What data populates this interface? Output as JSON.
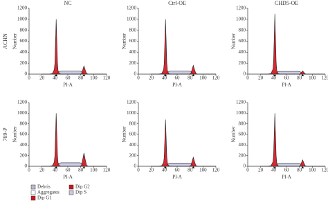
{
  "columns": [
    "NC",
    "Ctrl-OE",
    "CHD5-OE"
  ],
  "rows": [
    "ACHN",
    "769-P"
  ],
  "legend": [
    {
      "name": "Debris",
      "color": "#b9b9d6"
    },
    {
      "name": "Aggregates",
      "color": "#ffffff"
    },
    {
      "name": "Dip G1",
      "color": "#d0121b"
    },
    {
      "name": "Dip G2",
      "color": "#d0121b"
    },
    {
      "name": "Dip S",
      "color": "#c9c9e6"
    }
  ],
  "chart_data": [
    {
      "type": "area",
      "xlabel": "PI-A",
      "ylabel": "Number",
      "xlim": [
        0,
        120
      ],
      "ylim": [
        0,
        1200
      ],
      "xticks": [
        0,
        20,
        40,
        60,
        80,
        100,
        120
      ],
      "yticks": [
        0,
        200,
        400,
        600,
        800,
        1000,
        1200
      ],
      "markers": [
        42,
        85
      ],
      "x": [
        20,
        30,
        36,
        39,
        40,
        41,
        42,
        43,
        44,
        45,
        47,
        50,
        60,
        70,
        78,
        81,
        83,
        85,
        87,
        89,
        92,
        100,
        110,
        120
      ],
      "series": [
        {
          "name": "Dip S",
          "values": [
            0,
            0,
            0,
            0,
            0,
            0,
            0,
            0,
            20,
            40,
            50,
            55,
            55,
            55,
            55,
            50,
            30,
            10,
            0,
            0,
            0,
            0,
            0,
            0
          ]
        },
        {
          "name": "Dip G1",
          "values": [
            0,
            0,
            10,
            80,
            200,
            600,
            1000,
            600,
            200,
            60,
            10,
            0,
            0,
            0,
            0,
            0,
            0,
            0,
            0,
            0,
            0,
            0,
            0,
            0
          ]
        },
        {
          "name": "Dip G2",
          "values": [
            0,
            0,
            0,
            0,
            0,
            0,
            0,
            0,
            0,
            0,
            0,
            0,
            0,
            0,
            0,
            8,
            75,
            150,
            75,
            12,
            0,
            0,
            0,
            0
          ]
        }
      ]
    },
    {
      "type": "area",
      "xlabel": "PI-A",
      "ylabel": "Number",
      "xlim": [
        0,
        120
      ],
      "ylim": [
        0,
        1200
      ],
      "xticks": [
        0,
        20,
        40,
        60,
        80,
        100,
        120
      ],
      "yticks": [
        0,
        200,
        400,
        600,
        800,
        1000,
        1200
      ],
      "markers": [
        42,
        85
      ],
      "x": [
        20,
        30,
        36,
        39,
        40,
        41,
        42,
        43,
        44,
        45,
        47,
        50,
        60,
        70,
        78,
        81,
        83,
        85,
        87,
        89,
        92,
        100,
        110,
        120
      ],
      "series": [
        {
          "name": "Dip S",
          "values": [
            0,
            0,
            0,
            0,
            0,
            0,
            0,
            0,
            20,
            40,
            50,
            55,
            55,
            55,
            55,
            50,
            30,
            10,
            0,
            0,
            0,
            0,
            0,
            0
          ]
        },
        {
          "name": "Dip G1",
          "values": [
            0,
            0,
            10,
            80,
            200,
            600,
            1000,
            600,
            200,
            60,
            10,
            0,
            0,
            0,
            0,
            0,
            0,
            0,
            0,
            0,
            0,
            0,
            0,
            0
          ]
        },
        {
          "name": "Dip G2",
          "values": [
            0,
            0,
            0,
            0,
            0,
            0,
            0,
            0,
            0,
            0,
            0,
            0,
            0,
            0,
            0,
            9,
            80,
            160,
            80,
            13,
            0,
            0,
            0,
            0
          ]
        }
      ]
    },
    {
      "type": "area",
      "xlabel": "PI-A",
      "ylabel": "Number",
      "xlim": [
        0,
        120
      ],
      "ylim": [
        0,
        1200
      ],
      "xticks": [
        0,
        20,
        40,
        60,
        80,
        100,
        120
      ],
      "yticks": [
        0,
        200,
        400,
        600,
        800,
        1000,
        1200
      ],
      "markers": [
        42,
        85
      ],
      "x": [
        20,
        30,
        36,
        39,
        40,
        41,
        42,
        43,
        44,
        45,
        47,
        50,
        60,
        70,
        78,
        81,
        83,
        85,
        87,
        89,
        92,
        100,
        110,
        120
      ],
      "series": [
        {
          "name": "Dip S",
          "values": [
            0,
            0,
            0,
            0,
            0,
            0,
            0,
            0,
            18,
            36,
            45,
            50,
            50,
            50,
            50,
            45,
            27,
            9,
            0,
            0,
            0,
            0,
            0,
            0
          ]
        },
        {
          "name": "Dip G1",
          "values": [
            0,
            0,
            11,
            88,
            220,
            660,
            1100,
            660,
            220,
            66,
            11,
            0,
            0,
            0,
            0,
            0,
            0,
            0,
            0,
            0,
            0,
            0,
            0,
            0
          ]
        },
        {
          "name": "Dip G2",
          "values": [
            0,
            0,
            0,
            0,
            0,
            0,
            0,
            0,
            0,
            0,
            0,
            0,
            0,
            0,
            0,
            3,
            30,
            60,
            30,
            5,
            0,
            0,
            0,
            0
          ]
        }
      ]
    },
    {
      "type": "area",
      "xlabel": "PI-A",
      "ylabel": "Number",
      "xlim": [
        0,
        120
      ],
      "ylim": [
        0,
        1200
      ],
      "xticks": [
        0,
        20,
        40,
        60,
        80,
        100,
        120
      ],
      "yticks": [
        0,
        200,
        400,
        600,
        800,
        1000,
        1200
      ],
      "markers": [
        42,
        85
      ],
      "x": [
        20,
        30,
        36,
        39,
        40,
        41,
        42,
        43,
        44,
        45,
        47,
        50,
        60,
        70,
        78,
        81,
        83,
        85,
        87,
        89,
        92,
        100,
        110,
        120
      ],
      "series": [
        {
          "name": "Dip S",
          "values": [
            0,
            0,
            0,
            0,
            0,
            0,
            0,
            0,
            24,
            48,
            60,
            66,
            66,
            66,
            66,
            60,
            36,
            12,
            0,
            0,
            0,
            0,
            0,
            0
          ]
        },
        {
          "name": "Dip G1",
          "values": [
            0,
            0,
            10,
            80,
            200,
            600,
            1000,
            600,
            200,
            60,
            10,
            0,
            0,
            0,
            0,
            0,
            0,
            0,
            0,
            0,
            0,
            0,
            0,
            0
          ]
        },
        {
          "name": "Dip G2",
          "values": [
            0,
            0,
            0,
            0,
            0,
            0,
            0,
            0,
            0,
            0,
            0,
            0,
            0,
            0,
            0,
            13,
            125,
            250,
            125,
            20,
            0,
            0,
            0,
            0
          ]
        }
      ]
    },
    {
      "type": "area",
      "xlabel": "PI-A",
      "ylabel": "Number",
      "xlim": [
        0,
        120
      ],
      "ylim": [
        0,
        1200
      ],
      "xticks": [
        0,
        20,
        40,
        60,
        80,
        100,
        120
      ],
      "yticks": [
        0,
        200,
        400,
        600,
        800,
        1000,
        1200
      ],
      "markers": [
        42,
        85
      ],
      "x": [
        20,
        30,
        36,
        39,
        40,
        41,
        42,
        43,
        44,
        45,
        47,
        50,
        60,
        70,
        78,
        81,
        83,
        85,
        87,
        89,
        92,
        100,
        110,
        120
      ],
      "series": [
        {
          "name": "Dip S",
          "values": [
            0,
            0,
            0,
            0,
            0,
            0,
            0,
            0,
            22,
            44,
            55,
            60,
            60,
            60,
            60,
            55,
            33,
            11,
            0,
            0,
            0,
            0,
            0,
            0
          ]
        },
        {
          "name": "Dip G1",
          "values": [
            0,
            0,
            9,
            70,
            176,
            528,
            880,
            528,
            176,
            53,
            9,
            0,
            0,
            0,
            0,
            0,
            0,
            0,
            0,
            0,
            0,
            0,
            0,
            0
          ]
        },
        {
          "name": "Dip G2",
          "values": [
            0,
            0,
            0,
            0,
            0,
            0,
            0,
            0,
            0,
            0,
            0,
            0,
            0,
            0,
            0,
            9,
            85,
            170,
            85,
            14,
            0,
            0,
            0,
            0
          ]
        }
      ]
    },
    {
      "type": "area",
      "xlabel": "PI-A",
      "ylabel": "Number",
      "xlim": [
        0,
        120
      ],
      "ylim": [
        0,
        1200
      ],
      "xticks": [
        0,
        20,
        40,
        60,
        80,
        100,
        120
      ],
      "yticks": [
        0,
        200,
        400,
        600,
        800,
        1000,
        1200
      ],
      "markers": [
        42,
        85
      ],
      "x": [
        20,
        30,
        36,
        39,
        40,
        41,
        42,
        43,
        44,
        45,
        47,
        50,
        60,
        70,
        78,
        81,
        83,
        85,
        87,
        89,
        92,
        100,
        110,
        120
      ],
      "series": [
        {
          "name": "Dip S",
          "values": [
            0,
            0,
            0,
            0,
            0,
            0,
            0,
            0,
            20,
            40,
            50,
            55,
            55,
            55,
            55,
            50,
            30,
            10,
            0,
            0,
            0,
            0,
            0,
            0
          ]
        },
        {
          "name": "Dip G1",
          "values": [
            0,
            0,
            10,
            80,
            200,
            600,
            1000,
            600,
            200,
            60,
            10,
            0,
            0,
            0,
            0,
            0,
            0,
            0,
            0,
            0,
            0,
            0,
            0,
            0
          ]
        },
        {
          "name": "Dip G2",
          "values": [
            0,
            0,
            0,
            0,
            0,
            0,
            0,
            0,
            0,
            0,
            0,
            0,
            0,
            0,
            0,
            6,
            60,
            120,
            60,
            10,
            0,
            0,
            0,
            0
          ]
        }
      ]
    }
  ]
}
